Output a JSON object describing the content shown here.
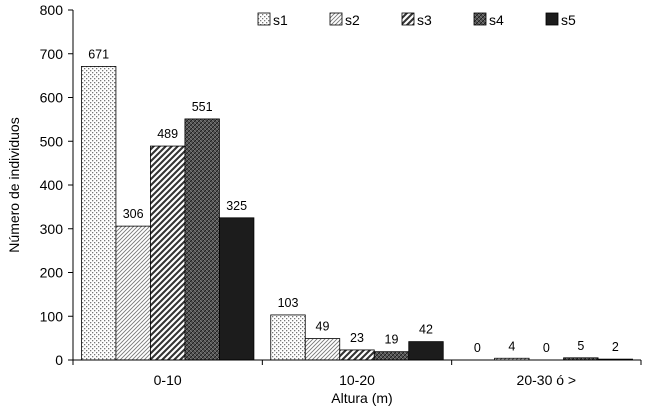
{
  "chart_data": {
    "type": "bar",
    "xlabel": "Altura (m)",
    "ylabel": "Número de individuos",
    "ylim": [
      0,
      800
    ],
    "yticks": [
      0,
      100,
      200,
      300,
      400,
      500,
      600,
      700,
      800
    ],
    "grid": false,
    "legend_position": "top-right",
    "categories": [
      "0-10",
      "10-20",
      "20-30 ó >"
    ],
    "series": [
      {
        "name": "s1",
        "values": [
          671,
          103,
          0
        ],
        "pattern": "fine-dots"
      },
      {
        "name": "s2",
        "values": [
          306,
          49,
          4
        ],
        "pattern": "fine-diagonal"
      },
      {
        "name": "s3",
        "values": [
          489,
          23,
          0
        ],
        "pattern": "bold-diagonal"
      },
      {
        "name": "s4",
        "values": [
          551,
          19,
          5
        ],
        "pattern": "dark-crosshatch"
      },
      {
        "name": "s5",
        "values": [
          325,
          42,
          2
        ],
        "pattern": "solid-black"
      }
    ]
  }
}
